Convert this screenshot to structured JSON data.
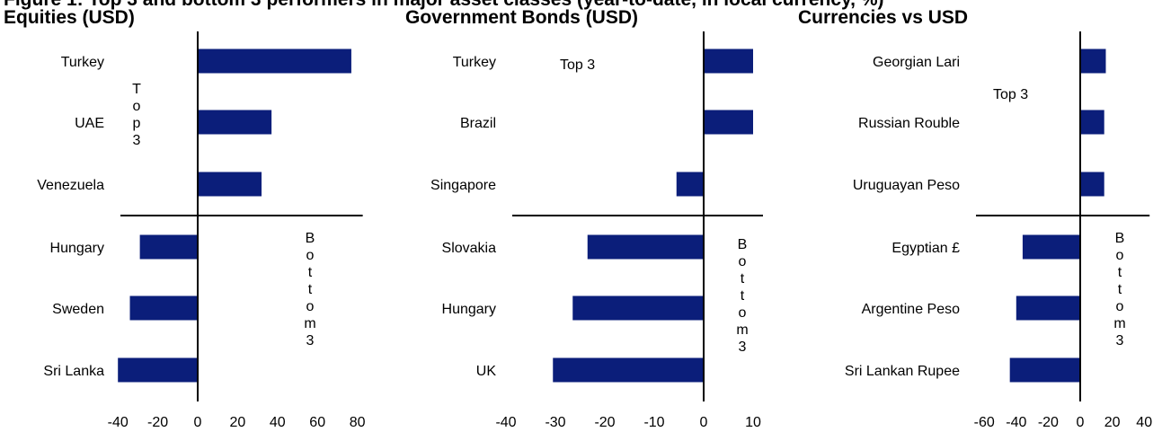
{
  "figure_title": "Figure 1: Top 3 and bottom 3 performers in major asset classes (year-to-date, in local currency, %)",
  "colors": {
    "bar": "#0b1e7a",
    "axis": "#000000",
    "text": "#000000"
  },
  "chart_data": [
    {
      "type": "bar",
      "orientation": "horizontal",
      "title": "Equities (USD)",
      "categories": [
        "Turkey",
        "UAE",
        "Venezuela",
        "Hungary",
        "Sweden",
        "Sri Lanka"
      ],
      "values": [
        77,
        37,
        32,
        -29,
        -34,
        -40
      ],
      "xlim": [
        -40,
        80
      ],
      "xticks": [
        -40,
        -20,
        0,
        20,
        40,
        60,
        80
      ],
      "annotations": {
        "top": "Top 3",
        "bottom": "Bottom 3",
        "top_style": "vertical",
        "bottom_style": "vertical"
      }
    },
    {
      "type": "bar",
      "orientation": "horizontal",
      "title": "Government Bonds (USD)",
      "categories": [
        "Turkey",
        "Brazil",
        "Singapore",
        "Slovakia",
        "Hungary",
        "UK"
      ],
      "values": [
        10,
        10,
        -5.5,
        -23.5,
        -26.5,
        -30.5
      ],
      "xlim": [
        -40,
        10
      ],
      "xticks": [
        -40,
        -30,
        -20,
        -10,
        0,
        10
      ],
      "annotations": {
        "top": "Top 3",
        "bottom": "Bottom 3",
        "top_style": "horizontal",
        "bottom_style": "vertical"
      }
    },
    {
      "type": "bar",
      "orientation": "horizontal",
      "title": "Currencies vs USD",
      "categories": [
        "Georgian Lari",
        "Russian Rouble",
        "Uruguayan Peso",
        "Egyptian £",
        "Argentine Peso",
        "Sri Lankan Rupee"
      ],
      "values": [
        16,
        15,
        15,
        -36,
        -40,
        -44
      ],
      "xlim": [
        -60,
        40
      ],
      "xticks": [
        -60,
        -40,
        -20,
        0,
        20,
        40
      ],
      "annotations": {
        "top": "Top 3",
        "bottom": "Bottom 3",
        "top_style": "horizontal",
        "bottom_style": "vertical"
      }
    }
  ]
}
